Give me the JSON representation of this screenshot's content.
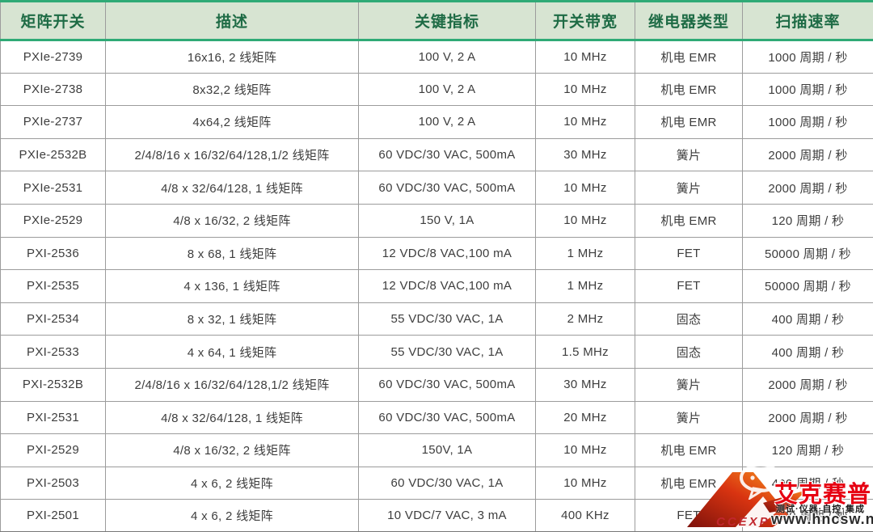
{
  "table": {
    "headers": [
      "矩阵开关",
      "描述",
      "关键指标",
      "开关带宽",
      "继电器类型",
      "扫描速率"
    ],
    "rows": [
      [
        "PXIe-2739",
        "16x16, 2 线矩阵",
        "100 V, 2 A",
        "10 MHz",
        "机电 EMR",
        "1000 周期 / 秒"
      ],
      [
        "PXIe-2738",
        "8x32,2 线矩阵",
        "100 V, 2 A",
        "10 MHz",
        "机电 EMR",
        "1000 周期 / 秒"
      ],
      [
        "PXIe-2737",
        "4x64,2 线矩阵",
        "100 V, 2 A",
        "10 MHz",
        "机电 EMR",
        "1000 周期 / 秒"
      ],
      [
        "PXIe-2532B",
        "2/4/8/16 x 16/32/64/128,1/2 线矩阵",
        "60 VDC/30 VAC, 500mA",
        "30 MHz",
        "簧片",
        "2000 周期 / 秒"
      ],
      [
        "PXIe-2531",
        "4/8 x 32/64/128, 1 线矩阵",
        "60 VDC/30 VAC, 500mA",
        "10 MHz",
        "簧片",
        "2000 周期 / 秒"
      ],
      [
        "PXIe-2529",
        "4/8 x 16/32, 2 线矩阵",
        "150 V, 1A",
        "10 MHz",
        "机电 EMR",
        "120 周期 / 秒"
      ],
      [
        "PXI-2536",
        "8 x 68, 1 线矩阵",
        "12 VDC/8 VAC,100 mA",
        "1 MHz",
        "FET",
        "50000 周期 / 秒"
      ],
      [
        "PXI-2535",
        "4 x 136, 1 线矩阵",
        "12 VDC/8 VAC,100 mA",
        "1 MHz",
        "FET",
        "50000 周期 / 秒"
      ],
      [
        "PXI-2534",
        "8 x 32, 1 线矩阵",
        "55 VDC/30 VAC, 1A",
        "2 MHz",
        "固态",
        "400 周期 / 秒"
      ],
      [
        "PXI-2533",
        "4 x 64, 1 线矩阵",
        "55 VDC/30 VAC, 1A",
        "1.5 MHz",
        "固态",
        "400 周期 / 秒"
      ],
      [
        "PXI-2532B",
        "2/4/8/16 x 16/32/64/128,1/2 线矩阵",
        "60 VDC/30 VAC, 500mA",
        "30 MHz",
        "簧片",
        "2000 周期 / 秒"
      ],
      [
        "PXI-2531",
        "4/8 x 32/64/128, 1 线矩阵",
        "60 VDC/30 VAC, 500mA",
        "20 MHz",
        "簧片",
        "2000 周期 / 秒"
      ],
      [
        "PXI-2529",
        "4/8 x 16/32, 2 线矩阵",
        "150V, 1A",
        "10 MHz",
        "机电 EMR",
        "120 周期 / 秒"
      ],
      [
        "PXI-2503",
        "4 x 6, 2 线矩阵",
        "60 VDC/30 VAC, 1A",
        "10 MHz",
        "机电 EMR",
        "400 周期 / 秒"
      ],
      [
        "PXI-2501",
        "4 x 6, 2 线矩阵",
        "10 VDC/7 VAC, 3 mA",
        "400 KHz",
        "FET",
        "5000 周期 / 秒"
      ]
    ]
  },
  "watermark": {
    "logo_text": "CCEXP",
    "brand": "艾克赛普",
    "tagline": "测试·仪器·自控·集成",
    "url": "www.hncsw.net"
  },
  "colors": {
    "header_bg": "#d7e4d2",
    "header_text": "#1e6b45",
    "accent_green": "#2faa76",
    "grid_line": "#9c9c9c",
    "body_text": "#3d3d3d",
    "watermark_red": "#e60012"
  }
}
